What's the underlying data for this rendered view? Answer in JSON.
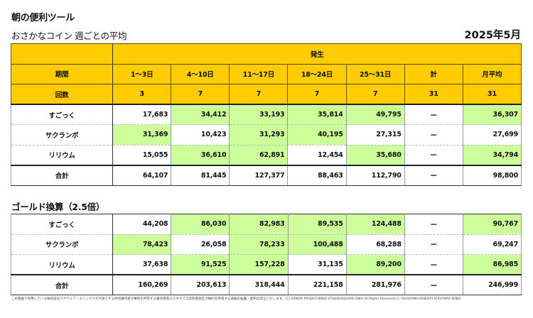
{
  "header": {
    "app_title": "朝の便利ツール",
    "section1_title": "おさかなコイン 週ごとの平均",
    "month": "2025年5月",
    "section2_title": "ゴールド換算（2.5倍）"
  },
  "colors": {
    "header_yellow": "#FFCC00",
    "highlight_green": "#CCFF99",
    "border": "#333333"
  },
  "table_header": {
    "group_label": "発生",
    "period_label": "期間",
    "count_label": "回数",
    "periods": [
      "1～3日",
      "4～10日",
      "11～17日",
      "18～24日",
      "25～31日",
      "計",
      "月平均"
    ],
    "counts": [
      "3",
      "7",
      "7",
      "7",
      "7",
      "31",
      "31"
    ]
  },
  "coins_table": {
    "rows": [
      {
        "label": "すごっく",
        "values": [
          "17,683",
          "34,412",
          "33,193",
          "35,814",
          "49,795",
          "ー",
          "36,307"
        ],
        "highlight": [
          false,
          true,
          true,
          true,
          true,
          false,
          true
        ]
      },
      {
        "label": "サクランボ",
        "values": [
          "31,369",
          "10,423",
          "31,293",
          "40,195",
          "27,315",
          "ー",
          "27,699"
        ],
        "highlight": [
          true,
          false,
          true,
          true,
          false,
          false,
          false
        ]
      },
      {
        "label": "リリウム",
        "values": [
          "15,055",
          "36,610",
          "62,891",
          "12,454",
          "35,680",
          "ー",
          "34,794"
        ],
        "highlight": [
          false,
          true,
          true,
          false,
          true,
          false,
          true
        ]
      },
      {
        "label": "合計",
        "values": [
          "64,107",
          "81,445",
          "127,377",
          "88,463",
          "112,790",
          "ー",
          "98,800"
        ],
        "highlight": [
          false,
          false,
          false,
          false,
          false,
          false,
          false
        ]
      }
    ]
  },
  "gold_table": {
    "rows": [
      {
        "label": "すごっく",
        "values": [
          "44,208",
          "86,030",
          "82,983",
          "89,535",
          "124,488",
          "ー",
          "90,767"
        ],
        "highlight": [
          false,
          true,
          true,
          true,
          true,
          false,
          true
        ]
      },
      {
        "label": "サクランボ",
        "values": [
          "78,423",
          "26,058",
          "78,233",
          "100,488",
          "68,288",
          "ー",
          "69,247"
        ],
        "highlight": [
          true,
          false,
          true,
          true,
          false,
          false,
          false
        ]
      },
      {
        "label": "リリウム",
        "values": [
          "37,638",
          "91,525",
          "157,228",
          "31,135",
          "89,200",
          "ー",
          "86,985"
        ],
        "highlight": [
          false,
          true,
          true,
          false,
          true,
          false,
          true
        ]
      },
      {
        "label": "合計",
        "values": [
          "160,269",
          "203,613",
          "318,444",
          "221,158",
          "281,976",
          "ー",
          "246,999"
        ],
        "highlight": [
          false,
          false,
          false,
          false,
          false,
          false,
          false
        ]
      }
    ]
  },
  "footer": {
    "note": "この動画で利用している株式会社スクウェア・エニックスを代表とする共同著作者が権利を所有する著作物及びスギヤマ工房有限会社が権利を所有する楽曲の転載・配布は禁止いたします。(C) ARMOR PROJECT/BIRD STUDIO/SQUARE ENIX All Rights Reserved.(C) SUGIYAMA KOBO(P) SUGIYAMA KOBO"
  }
}
